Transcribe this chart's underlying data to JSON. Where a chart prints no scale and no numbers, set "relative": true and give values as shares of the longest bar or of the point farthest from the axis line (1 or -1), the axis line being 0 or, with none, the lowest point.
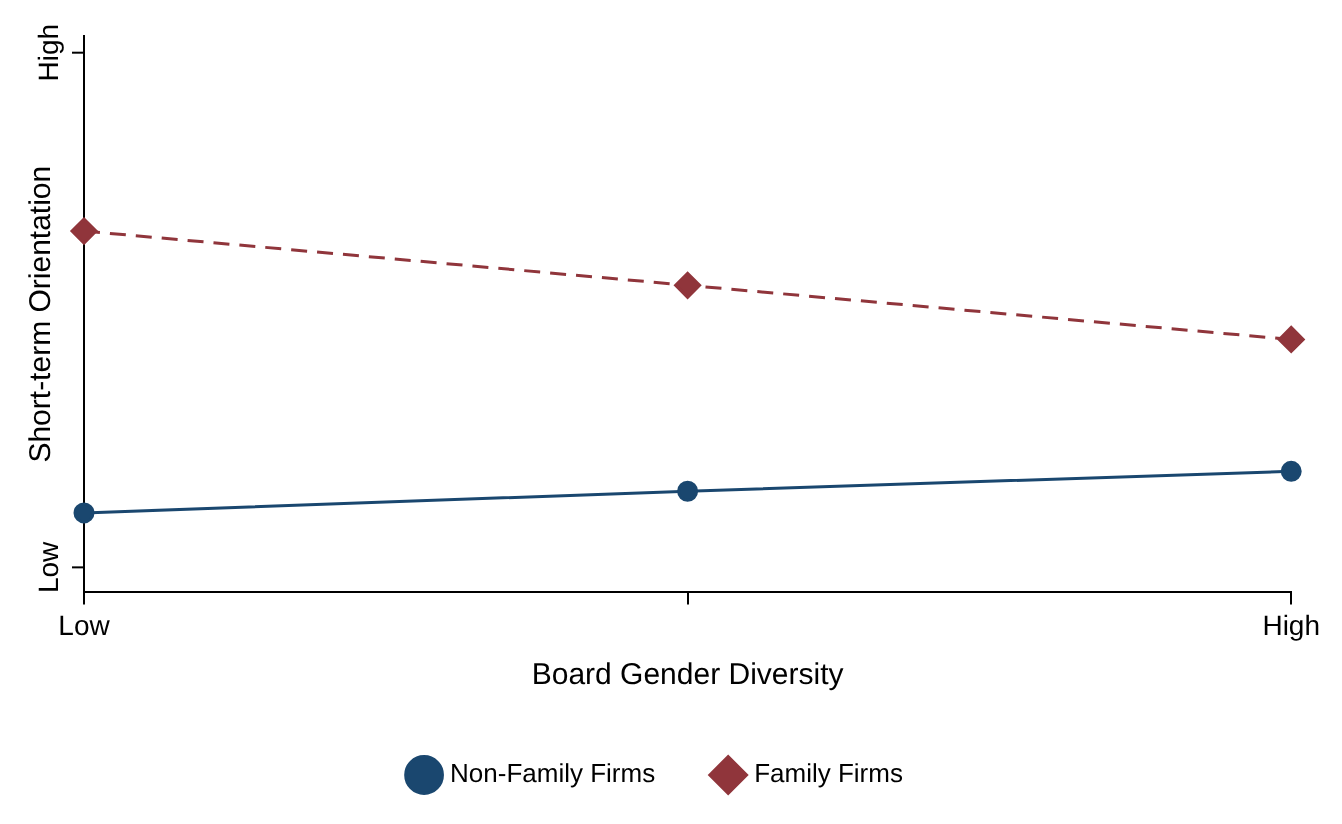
{
  "chart_data": {
    "type": "line",
    "xlabel": "Board Gender Diversity",
    "ylabel": "Short-term Orientation",
    "categories": [
      "Low",
      null,
      "High"
    ],
    "relative": true,
    "annotations": [
      "Low",
      "High"
    ],
    "grid": false,
    "legend": "bottom",
    "series": [
      {
        "name": "Non-Family Firms",
        "color": "#1a476f",
        "values": [
          0.22,
          0.28,
          0.335
        ],
        "marker": "circle",
        "line_style": "solid"
      },
      {
        "name": "Family Firms",
        "color": "#90353b",
        "values": [
          1,
          0.85,
          0.7
        ],
        "marker": "diamond",
        "line_style": "dashed"
      }
    ]
  }
}
